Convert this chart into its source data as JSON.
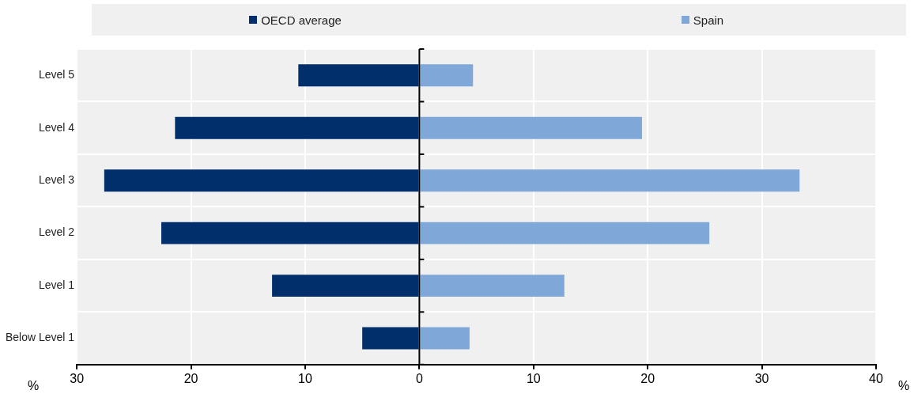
{
  "chart_data": {
    "type": "bar",
    "orientation": "horizontal",
    "xlabel": "%",
    "categories": [
      "Level 5",
      "Level 4",
      "Level 3",
      "Level 2",
      "Level 1",
      "Below Level 1"
    ],
    "series": [
      {
        "name": "OECD average",
        "color": "#002f6c",
        "values": [
          -10.6,
          -21.4,
          -27.6,
          -22.6,
          -12.9,
          -5.0
        ]
      },
      {
        "name": "Spain",
        "color": "#7fa8d9",
        "values": [
          4.7,
          19.5,
          33.3,
          25.4,
          12.7,
          4.4
        ]
      }
    ],
    "xlim": [
      -30,
      40
    ],
    "xticks": [
      {
        "value": -30,
        "label": "30"
      },
      {
        "value": -20,
        "label": "20"
      },
      {
        "value": -10,
        "label": "10"
      },
      0,
      10,
      20,
      30,
      40
    ],
    "grid": true,
    "legend": "top",
    "stacked": true
  }
}
